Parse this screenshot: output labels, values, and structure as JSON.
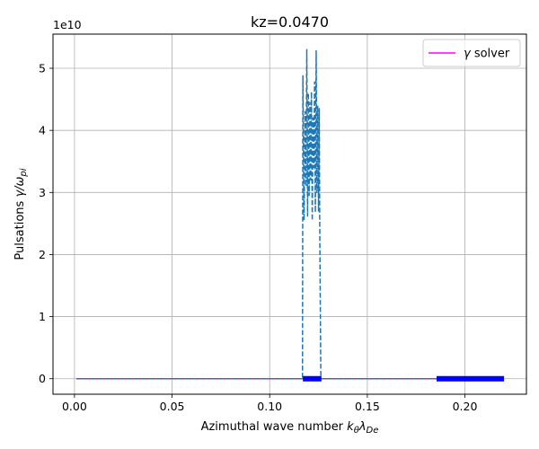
{
  "chart_data": {
    "type": "line",
    "title": "kz=0.0470",
    "xlabel_prefix": "Azimuthal wave number ",
    "xlabel_symbol": "k",
    "xlabel_sub1": "θ",
    "xlabel_symbol2": "λ",
    "xlabel_sub2": "De",
    "ylabel_prefix": "Pulsations  ",
    "ylabel_symbol": "γ/ω",
    "ylabel_sub": "pi",
    "y_scale_label": "1e10",
    "xlim": [
      -0.011,
      0.2315
    ],
    "ylim": [
      -0.25,
      5.55
    ],
    "xticks": [
      0.0,
      0.05,
      0.1,
      0.15,
      0.2
    ],
    "xtick_labels": [
      "0.00",
      "0.05",
      "0.10",
      "0.15",
      "0.20"
    ],
    "yticks": [
      0,
      1,
      2,
      3,
      4,
      5
    ],
    "ytick_labels": [
      "0",
      "1",
      "2",
      "3",
      "4",
      "5"
    ],
    "grid": true,
    "legend_position": "top-right",
    "legend_label_symbol": "γ",
    "legend_label_text": " solver",
    "series": [
      {
        "name": "γ solver",
        "style": "solid",
        "color": "#ff00ff",
        "x": [
          0.001,
          0.22
        ],
        "y": [
          0.0,
          0.0
        ]
      },
      {
        "name": "dashed curve",
        "style": "dashed",
        "color": "#1f77b4",
        "x": [
          0.001,
          0.1168,
          0.117,
          0.1176,
          0.1181,
          0.1186,
          0.119,
          0.1194,
          0.1198,
          0.1202,
          0.1206,
          0.121,
          0.1214,
          0.1218,
          0.1222,
          0.1226,
          0.123,
          0.1234,
          0.1238,
          0.1242,
          0.1246,
          0.125,
          0.1254,
          0.1256,
          0.1262,
          0.22
        ],
        "y": [
          0.0,
          0.0,
          4.88,
          2.55,
          4.3,
          3.1,
          5.3,
          2.62,
          4.6,
          2.95,
          4.45,
          3.2,
          4.62,
          2.55,
          4.2,
          3.4,
          4.78,
          2.68,
          5.28,
          3.0,
          4.4,
          2.7,
          4.35,
          2.6,
          0.0,
          0.0
        ]
      }
    ],
    "markers": {
      "color": "#0000ff",
      "segments": [
        {
          "x_start": 0.117,
          "x_end": 0.1265,
          "y": 0.0
        },
        {
          "x_start": 0.1855,
          "x_end": 0.22,
          "y": 0.0
        }
      ]
    }
  }
}
